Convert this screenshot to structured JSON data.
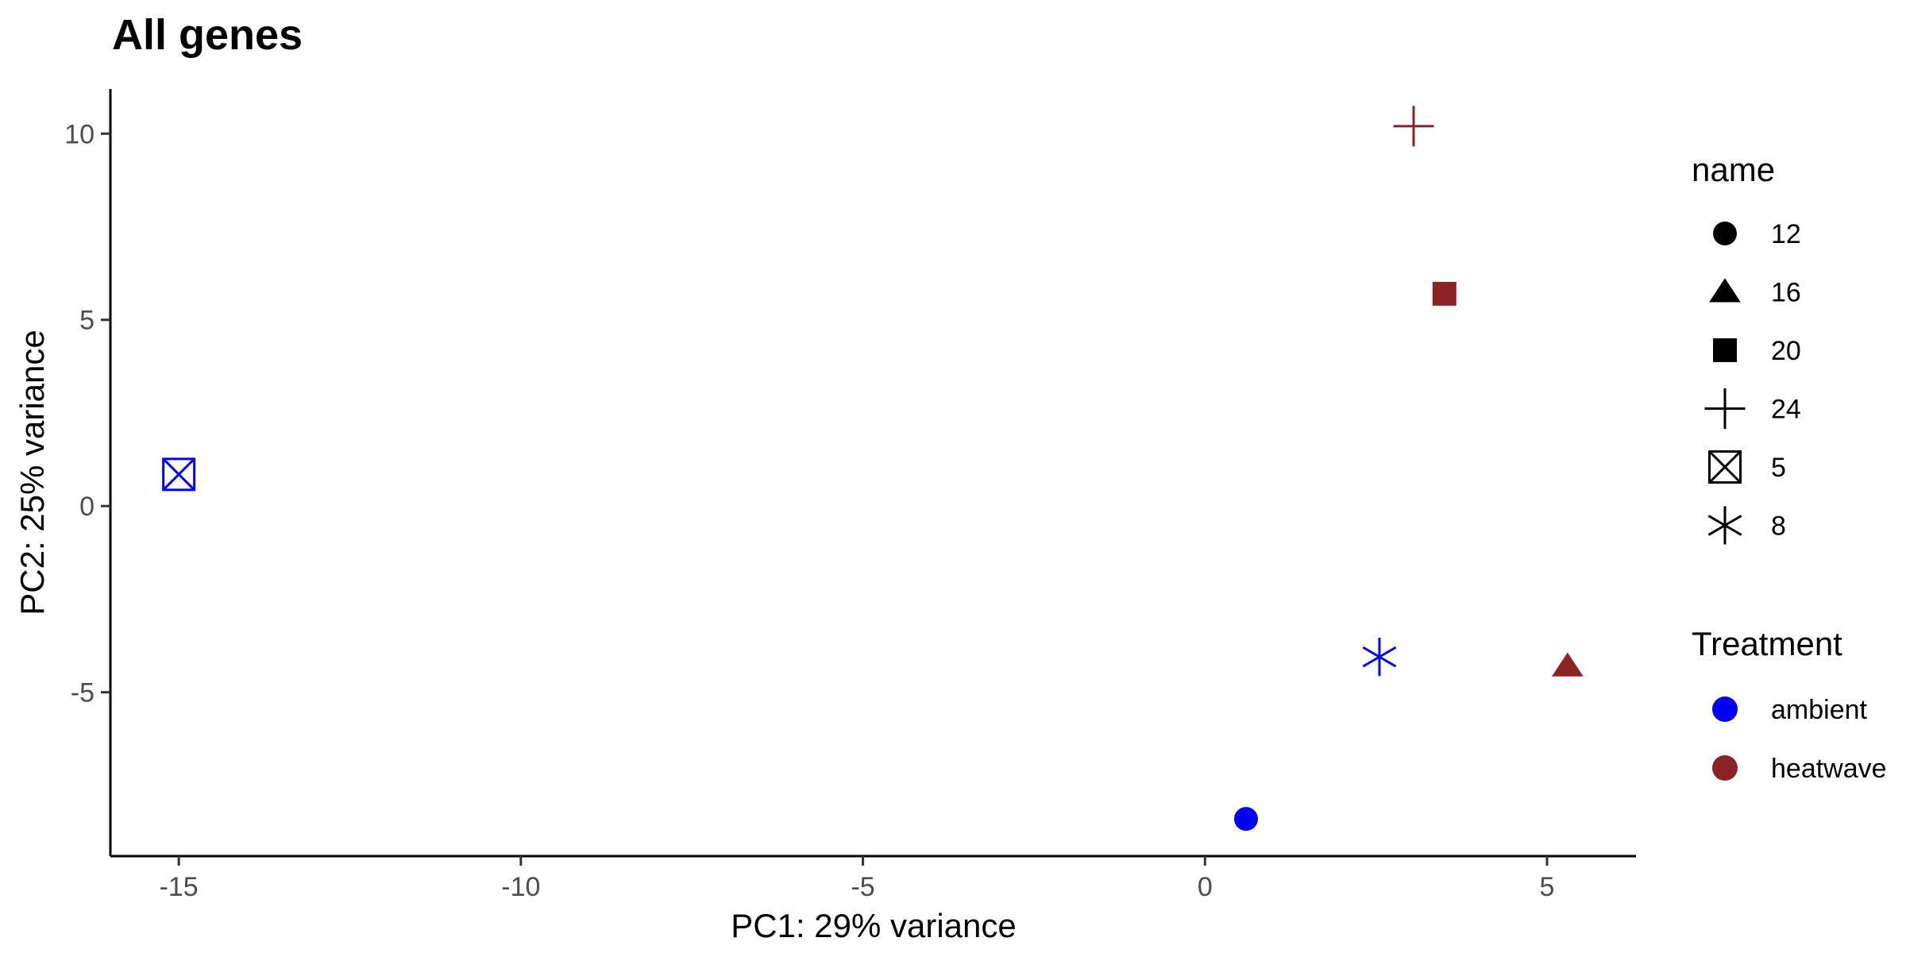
{
  "chart_data": {
    "type": "scatter",
    "title": "All genes",
    "xlabel": "PC1: 29% variance",
    "ylabel": "PC2: 25% variance",
    "xlim": [
      -16,
      6.3
    ],
    "ylim": [
      -9.4,
      11.2
    ],
    "xticks": [
      -15,
      -10,
      -5,
      0,
      5
    ],
    "xtick_labels": [
      "-15",
      "-10",
      "-5",
      "0",
      "5"
    ],
    "yticks": [
      -5,
      0,
      5,
      10
    ],
    "ytick_labels": [
      "-5",
      "0",
      "5",
      "10"
    ],
    "grid": false,
    "legend_position": "right",
    "points": [
      {
        "name": "12",
        "treatment": "ambient",
        "x": 0.6,
        "y": -8.4
      },
      {
        "name": "16",
        "treatment": "heatwave",
        "x": 5.3,
        "y": -4.3
      },
      {
        "name": "20",
        "treatment": "heatwave",
        "x": 3.5,
        "y": 5.7
      },
      {
        "name": "24",
        "treatment": "heatwave",
        "x": 3.05,
        "y": 10.2
      },
      {
        "name": "5",
        "treatment": "ambient",
        "x": -15.0,
        "y": 0.85
      },
      {
        "name": "8",
        "treatment": "ambient",
        "x": 2.55,
        "y": -4.05
      }
    ],
    "legend_shape": {
      "title": "name",
      "entries": [
        {
          "label": "12",
          "shape": "circle"
        },
        {
          "label": "16",
          "shape": "triangle"
        },
        {
          "label": "20",
          "shape": "square"
        },
        {
          "label": "24",
          "shape": "plus"
        },
        {
          "label": "5",
          "shape": "square-cross"
        },
        {
          "label": "8",
          "shape": "asterisk"
        }
      ]
    },
    "legend_color": {
      "title": "Treatment",
      "entries": [
        {
          "label": "ambient",
          "color": "#0000ff"
        },
        {
          "label": "heatwave",
          "color": "#8b2323"
        }
      ]
    }
  }
}
